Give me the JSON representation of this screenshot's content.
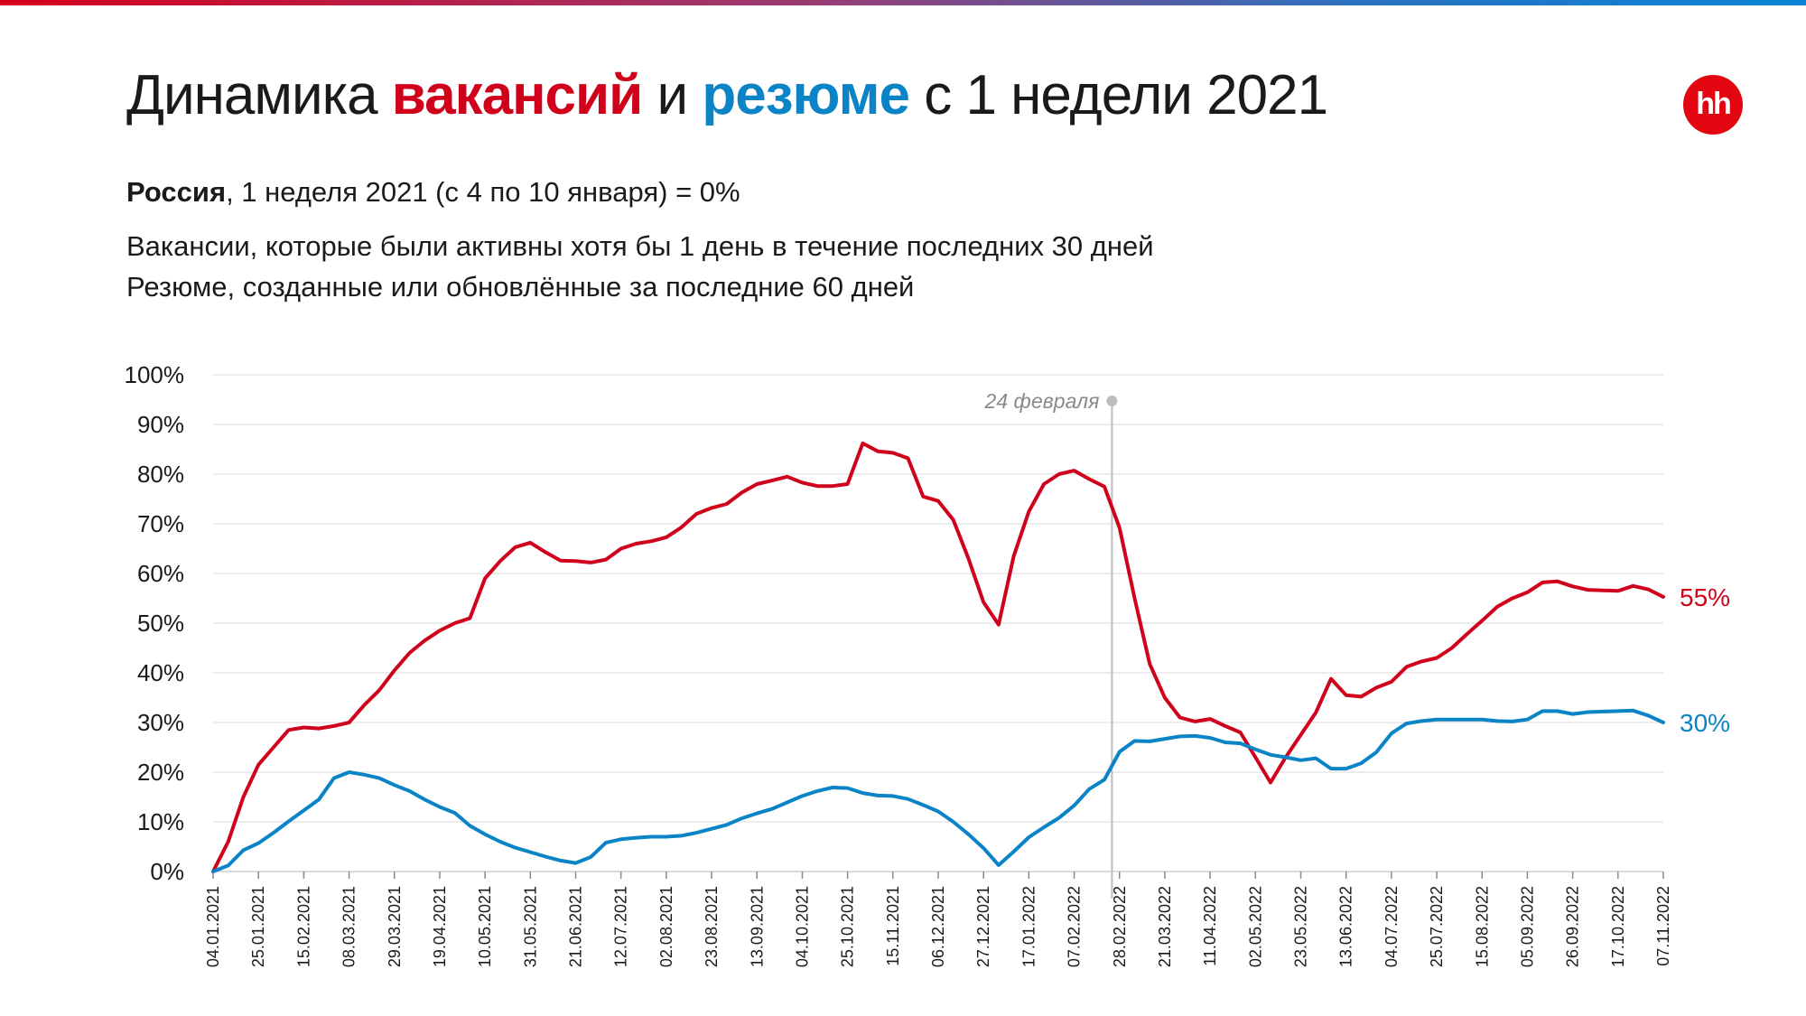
{
  "header": {
    "title_prefix": "Динамика ",
    "title_vacancies": "вакансий",
    "title_and": " и ",
    "title_resumes": "резюме",
    "title_suffix": " с 1 недели 2021",
    "logo_text": "hh",
    "subtitle_bold": "Россия",
    "subtitle_rest": ", 1 неделя 2021 (с 4 по 10 января) = 0%",
    "note_vacancies": "Вакансии, которые были активны хотя бы 1 день в течение последних 30 дней",
    "note_resumes": "Резюме, созданные или обновлённые за последние 60 дней"
  },
  "colors": {
    "vacancies": "#d0021b",
    "resumes": "#0a84c6",
    "grid": "#e6e6e6",
    "marker": "#bdbdbd"
  },
  "chart_data": {
    "type": "line",
    "title": "",
    "xlabel": "",
    "ylabel": "",
    "ylim": [
      0,
      100
    ],
    "y_ticks": [
      "0%",
      "10%",
      "20%",
      "30%",
      "40%",
      "50%",
      "60%",
      "70%",
      "80%",
      "90%",
      "100%"
    ],
    "x_tick_labels": [
      "04.01.2021",
      "25.01.2021",
      "15.02.2021",
      "08.03.2021",
      "29.03.2021",
      "19.04.2021",
      "10.05.2021",
      "31.05.2021",
      "21.06.2021",
      "12.07.2021",
      "02.08.2021",
      "23.08.2021",
      "13.09.2021",
      "04.10.2021",
      "25.10.2021",
      "15.11.2021",
      "06.12.2021",
      "27.12.2021",
      "17.01.2022",
      "07.02.2022",
      "28.02.2022",
      "21.03.2022",
      "11.04.2022",
      "02.05.2022",
      "23.05.2022",
      "13.06.2022",
      "04.07.2022",
      "25.07.2022",
      "15.08.2022",
      "05.09.2022",
      "26.09.2022",
      "17.10.2022",
      "07.11.2022"
    ],
    "grid": true,
    "annotation": {
      "label": "24 февраля",
      "week_index": 59.5
    },
    "series": [
      {
        "key": "vacancies",
        "end_label": "55%",
        "values": [
          0,
          6,
          15,
          21.5,
          25,
          28.5,
          29,
          28.8,
          29.3,
          30,
          33.5,
          36.5,
          40.5,
          44,
          46.5,
          48.5,
          50,
          51,
          59,
          62.5,
          65.3,
          66.2,
          64.3,
          62.6,
          62.5,
          62.2,
          62.8,
          65,
          66,
          66.5,
          67.3,
          69.3,
          72,
          73.2,
          74,
          76.3,
          78,
          78.7,
          79.5,
          78.3,
          77.6,
          77.6,
          78,
          86.2,
          84.6,
          84.3,
          83.2,
          75.5,
          74.6,
          70.8,
          63,
          54.2,
          49.7,
          63.5,
          72.5,
          78,
          80,
          80.7,
          79,
          77.5,
          69.2,
          55,
          41.8,
          35,
          31,
          30.2,
          30.7,
          29.3,
          28,
          23,
          17.9,
          23,
          27.5,
          32,
          38.8,
          35.5,
          35.2,
          37,
          38.2,
          41.2,
          42.3,
          43,
          45,
          47.8,
          50.5,
          53.3,
          55,
          56.2,
          58.2,
          58.4,
          57.4,
          56.7,
          56.6,
          56.5,
          57.5,
          56.8,
          55.3
        ]
      },
      {
        "key": "resumes",
        "end_label": "30%",
        "values": [
          0,
          1.2,
          4.3,
          5.7,
          7.8,
          10.1,
          12.3,
          14.5,
          18.8,
          20,
          19.5,
          18.8,
          17.4,
          16.2,
          14.5,
          13,
          11.8,
          9.2,
          7.5,
          6,
          4.8,
          3.9,
          3,
          2.2,
          1.7,
          2.9,
          5.8,
          6.5,
          6.8,
          7,
          7,
          7.2,
          7.8,
          8.6,
          9.4,
          10.7,
          11.7,
          12.6,
          13.9,
          15.2,
          16.2,
          16.9,
          16.8,
          15.8,
          15.3,
          15.2,
          14.6,
          13.4,
          12.1,
          10,
          7.5,
          4.7,
          1.3,
          4,
          6.9,
          8.9,
          10.8,
          13.3,
          16.6,
          18.5,
          24.1,
          26.3,
          26.2,
          26.7,
          27.2,
          27.3,
          26.9,
          26,
          25.8,
          24.6,
          23.5,
          23,
          22.4,
          22.8,
          20.7,
          20.7,
          21.8,
          24,
          27.8,
          29.8,
          30.3,
          30.6,
          30.6,
          30.6,
          30.6,
          30.3,
          30.2,
          30.6,
          32.3,
          32.3,
          31.7,
          32.1,
          32.2,
          32.3,
          32.4,
          31.4,
          30
        ]
      }
    ]
  }
}
